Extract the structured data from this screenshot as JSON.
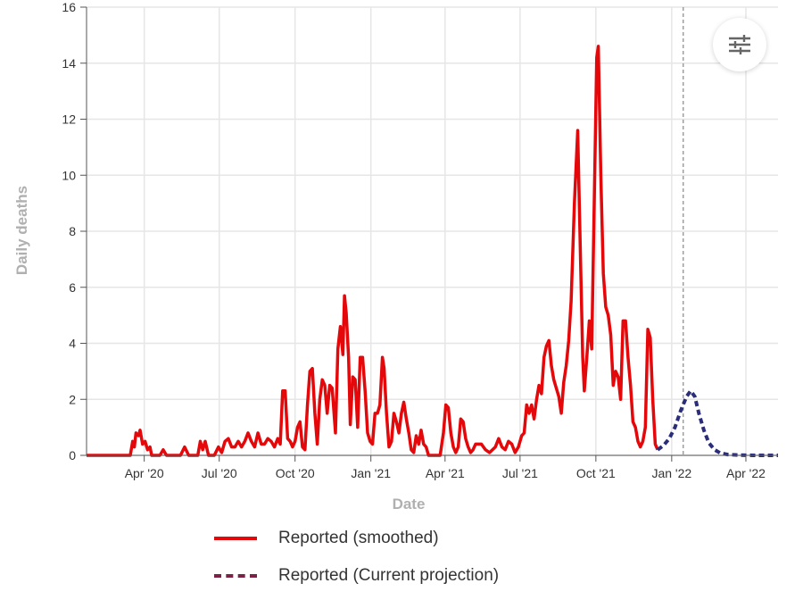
{
  "chart_data": {
    "type": "line",
    "xlabel": "Date",
    "ylabel": "Daily deaths",
    "x_range": [
      "2020-01-22",
      "2022-05-10"
    ],
    "ylim": [
      0,
      16
    ],
    "y_ticks": [
      0,
      2,
      4,
      6,
      8,
      10,
      12,
      14,
      16
    ],
    "x_ticks": [
      {
        "date": "2020-04-01",
        "label": "Apr '20"
      },
      {
        "date": "2020-07-01",
        "label": "Jul '20"
      },
      {
        "date": "2020-10-01",
        "label": "Oct '20"
      },
      {
        "date": "2021-01-01",
        "label": "Jan '21"
      },
      {
        "date": "2021-04-01",
        "label": "Apr '21"
      },
      {
        "date": "2021-07-01",
        "label": "Jul '21"
      },
      {
        "date": "2021-10-01",
        "label": "Oct '21"
      },
      {
        "date": "2022-01-01",
        "label": "Jan '22"
      },
      {
        "date": "2022-04-01",
        "label": "Apr '22"
      }
    ],
    "grid": true,
    "legend_position": "bottom",
    "projection_start": "2022-01-15",
    "series": [
      {
        "name": "Reported (smoothed)",
        "color": "#e4080a",
        "style": "solid",
        "points": [
          [
            "2020-01-22",
            0
          ],
          [
            "2020-03-15",
            0
          ],
          [
            "2020-03-18",
            0.5
          ],
          [
            "2020-03-20",
            0.3
          ],
          [
            "2020-03-22",
            0.8
          ],
          [
            "2020-03-25",
            0.7
          ],
          [
            "2020-03-27",
            0.9
          ],
          [
            "2020-03-30",
            0.4
          ],
          [
            "2020-04-02",
            0.5
          ],
          [
            "2020-04-05",
            0.2
          ],
          [
            "2020-04-08",
            0.3
          ],
          [
            "2020-04-10",
            0
          ],
          [
            "2020-04-20",
            0
          ],
          [
            "2020-04-24",
            0.2
          ],
          [
            "2020-04-28",
            0
          ],
          [
            "2020-05-15",
            0
          ],
          [
            "2020-05-20",
            0.3
          ],
          [
            "2020-05-25",
            0
          ],
          [
            "2020-06-05",
            0
          ],
          [
            "2020-06-08",
            0.5
          ],
          [
            "2020-06-11",
            0.2
          ],
          [
            "2020-06-14",
            0.5
          ],
          [
            "2020-06-18",
            0
          ],
          [
            "2020-06-25",
            0
          ],
          [
            "2020-06-30",
            0.3
          ],
          [
            "2020-07-04",
            0.1
          ],
          [
            "2020-07-08",
            0.5
          ],
          [
            "2020-07-12",
            0.6
          ],
          [
            "2020-07-16",
            0.3
          ],
          [
            "2020-07-20",
            0.3
          ],
          [
            "2020-07-24",
            0.5
          ],
          [
            "2020-07-28",
            0.3
          ],
          [
            "2020-08-01",
            0.5
          ],
          [
            "2020-08-05",
            0.8
          ],
          [
            "2020-08-09",
            0.5
          ],
          [
            "2020-08-13",
            0.3
          ],
          [
            "2020-08-17",
            0.8
          ],
          [
            "2020-08-21",
            0.4
          ],
          [
            "2020-08-25",
            0.4
          ],
          [
            "2020-08-29",
            0.6
          ],
          [
            "2020-09-02",
            0.5
          ],
          [
            "2020-09-06",
            0.3
          ],
          [
            "2020-09-10",
            0.6
          ],
          [
            "2020-09-13",
            0.4
          ],
          [
            "2020-09-16",
            2.3
          ],
          [
            "2020-09-19",
            2.3
          ],
          [
            "2020-09-22",
            0.6
          ],
          [
            "2020-09-25",
            0.5
          ],
          [
            "2020-09-28",
            0.3
          ],
          [
            "2020-10-01",
            0.5
          ],
          [
            "2020-10-04",
            1
          ],
          [
            "2020-10-07",
            1.2
          ],
          [
            "2020-10-10",
            0.3
          ],
          [
            "2020-10-13",
            0.2
          ],
          [
            "2020-10-16",
            1.8
          ],
          [
            "2020-10-19",
            3
          ],
          [
            "2020-10-22",
            3.1
          ],
          [
            "2020-10-25",
            1.5
          ],
          [
            "2020-10-28",
            0.4
          ],
          [
            "2020-10-31",
            2
          ],
          [
            "2020-11-03",
            2.7
          ],
          [
            "2020-11-06",
            2.5
          ],
          [
            "2020-11-09",
            1.5
          ],
          [
            "2020-11-12",
            2.5
          ],
          [
            "2020-11-15",
            2.4
          ],
          [
            "2020-11-19",
            0.8
          ],
          [
            "2020-11-22",
            3.8
          ],
          [
            "2020-11-25",
            4.6
          ],
          [
            "2020-11-28",
            3.6
          ],
          [
            "2020-11-30",
            5.7
          ],
          [
            "2020-12-02",
            5.1
          ],
          [
            "2020-12-05",
            3.5
          ],
          [
            "2020-12-07",
            1.1
          ],
          [
            "2020-12-10",
            2.8
          ],
          [
            "2020-12-13",
            2.7
          ],
          [
            "2020-12-16",
            1.0
          ],
          [
            "2020-12-19",
            3.5
          ],
          [
            "2020-12-22",
            3.5
          ],
          [
            "2020-12-25",
            2.3
          ],
          [
            "2020-12-28",
            0.8
          ],
          [
            "2020-12-31",
            0.5
          ],
          [
            "2021-01-03",
            0.4
          ],
          [
            "2021-01-06",
            1.5
          ],
          [
            "2021-01-09",
            1.5
          ],
          [
            "2021-01-12",
            1.8
          ],
          [
            "2021-01-15",
            3.5
          ],
          [
            "2021-01-17",
            3.1
          ],
          [
            "2021-01-20",
            1.5
          ],
          [
            "2021-01-23",
            0.3
          ],
          [
            "2021-01-26",
            0.5
          ],
          [
            "2021-01-29",
            1.5
          ],
          [
            "2021-02-01",
            1.2
          ],
          [
            "2021-02-04",
            0.8
          ],
          [
            "2021-02-07",
            1.5
          ],
          [
            "2021-02-10",
            1.9
          ],
          [
            "2021-02-13",
            1.3
          ],
          [
            "2021-02-16",
            0.8
          ],
          [
            "2021-02-19",
            0.2
          ],
          [
            "2021-02-22",
            0.1
          ],
          [
            "2021-02-25",
            0.7
          ],
          [
            "2021-02-28",
            0.4
          ],
          [
            "2021-03-03",
            0.9
          ],
          [
            "2021-03-06",
            0.4
          ],
          [
            "2021-03-09",
            0.3
          ],
          [
            "2021-03-12",
            0
          ],
          [
            "2021-03-26",
            0
          ],
          [
            "2021-03-30",
            0.8
          ],
          [
            "2021-04-02",
            1.8
          ],
          [
            "2021-04-05",
            1.7
          ],
          [
            "2021-04-08",
            0.8
          ],
          [
            "2021-04-11",
            0.3
          ],
          [
            "2021-04-14",
            0.1
          ],
          [
            "2021-04-17",
            0.3
          ],
          [
            "2021-04-20",
            1.3
          ],
          [
            "2021-04-23",
            1.2
          ],
          [
            "2021-04-26",
            0.6
          ],
          [
            "2021-04-29",
            0.3
          ],
          [
            "2021-05-02",
            0.1
          ],
          [
            "2021-05-05",
            0.2
          ],
          [
            "2021-05-08",
            0.4
          ],
          [
            "2021-05-15",
            0.4
          ],
          [
            "2021-05-20",
            0.2
          ],
          [
            "2021-05-25",
            0.1
          ],
          [
            "2021-06-01",
            0.3
          ],
          [
            "2021-06-05",
            0.6
          ],
          [
            "2021-06-09",
            0.3
          ],
          [
            "2021-06-13",
            0.2
          ],
          [
            "2021-06-17",
            0.5
          ],
          [
            "2021-06-21",
            0.4
          ],
          [
            "2021-06-25",
            0.1
          ],
          [
            "2021-06-29",
            0.3
          ],
          [
            "2021-07-03",
            0.7
          ],
          [
            "2021-07-06",
            0.8
          ],
          [
            "2021-07-09",
            1.8
          ],
          [
            "2021-07-12",
            1.5
          ],
          [
            "2021-07-15",
            1.8
          ],
          [
            "2021-07-18",
            1.3
          ],
          [
            "2021-07-21",
            2.0
          ],
          [
            "2021-07-24",
            2.5
          ],
          [
            "2021-07-27",
            2.2
          ],
          [
            "2021-07-30",
            3.5
          ],
          [
            "2021-08-02",
            3.9
          ],
          [
            "2021-08-05",
            4.1
          ],
          [
            "2021-08-08",
            3.2
          ],
          [
            "2021-08-11",
            2.7
          ],
          [
            "2021-08-14",
            2.4
          ],
          [
            "2021-08-17",
            2.1
          ],
          [
            "2021-08-20",
            1.5
          ],
          [
            "2021-08-23",
            2.6
          ],
          [
            "2021-08-26",
            3.2
          ],
          [
            "2021-08-29",
            4.1
          ],
          [
            "2021-09-01",
            5.5
          ],
          [
            "2021-09-05",
            9.0
          ],
          [
            "2021-09-09",
            11.6
          ],
          [
            "2021-09-12",
            7.5
          ],
          [
            "2021-09-15",
            3.5
          ],
          [
            "2021-09-17",
            2.3
          ],
          [
            "2021-09-20",
            3.5
          ],
          [
            "2021-09-23",
            4.8
          ],
          [
            "2021-09-26",
            3.8
          ],
          [
            "2021-09-29",
            9.0
          ],
          [
            "2021-10-02",
            14.2
          ],
          [
            "2021-10-04",
            14.6
          ],
          [
            "2021-10-07",
            10.0
          ],
          [
            "2021-10-10",
            6.5
          ],
          [
            "2021-10-13",
            5.3
          ],
          [
            "2021-10-16",
            5.0
          ],
          [
            "2021-10-19",
            4.3
          ],
          [
            "2021-10-22",
            2.5
          ],
          [
            "2021-10-25",
            3.0
          ],
          [
            "2021-10-28",
            2.8
          ],
          [
            "2021-10-31",
            2.0
          ],
          [
            "2021-11-03",
            4.8
          ],
          [
            "2021-11-06",
            4.8
          ],
          [
            "2021-11-09",
            3.5
          ],
          [
            "2021-11-12",
            2.5
          ],
          [
            "2021-11-15",
            1.2
          ],
          [
            "2021-11-18",
            1.0
          ],
          [
            "2021-11-21",
            0.5
          ],
          [
            "2021-11-24",
            0.3
          ],
          [
            "2021-11-27",
            0.5
          ],
          [
            "2021-11-30",
            1.0
          ],
          [
            "2021-12-03",
            4.5
          ],
          [
            "2021-12-06",
            4.2
          ],
          [
            "2021-12-09",
            2.0
          ],
          [
            "2021-12-12",
            0.4
          ],
          [
            "2021-12-15",
            0.2
          ]
        ]
      },
      {
        "name": "Reported (Current projection)",
        "color": "#7b2346",
        "style": "dashed",
        "points": [
          [
            "2021-12-15",
            0.2
          ],
          [
            "2021-12-22",
            0.35
          ],
          [
            "2021-12-29",
            0.6
          ],
          [
            "2022-01-05",
            1.0
          ],
          [
            "2022-01-12",
            1.6
          ],
          [
            "2022-01-19",
            2.1
          ],
          [
            "2022-01-24",
            2.3
          ],
          [
            "2022-01-29",
            2.1
          ],
          [
            "2022-02-03",
            1.5
          ],
          [
            "2022-02-09",
            0.9
          ],
          [
            "2022-02-15",
            0.45
          ],
          [
            "2022-02-22",
            0.2
          ],
          [
            "2022-03-01",
            0.08
          ],
          [
            "2022-03-10",
            0.03
          ],
          [
            "2022-03-25",
            0.01
          ],
          [
            "2022-04-10",
            0
          ],
          [
            "2022-05-10",
            0
          ]
        ]
      }
    ]
  }
}
